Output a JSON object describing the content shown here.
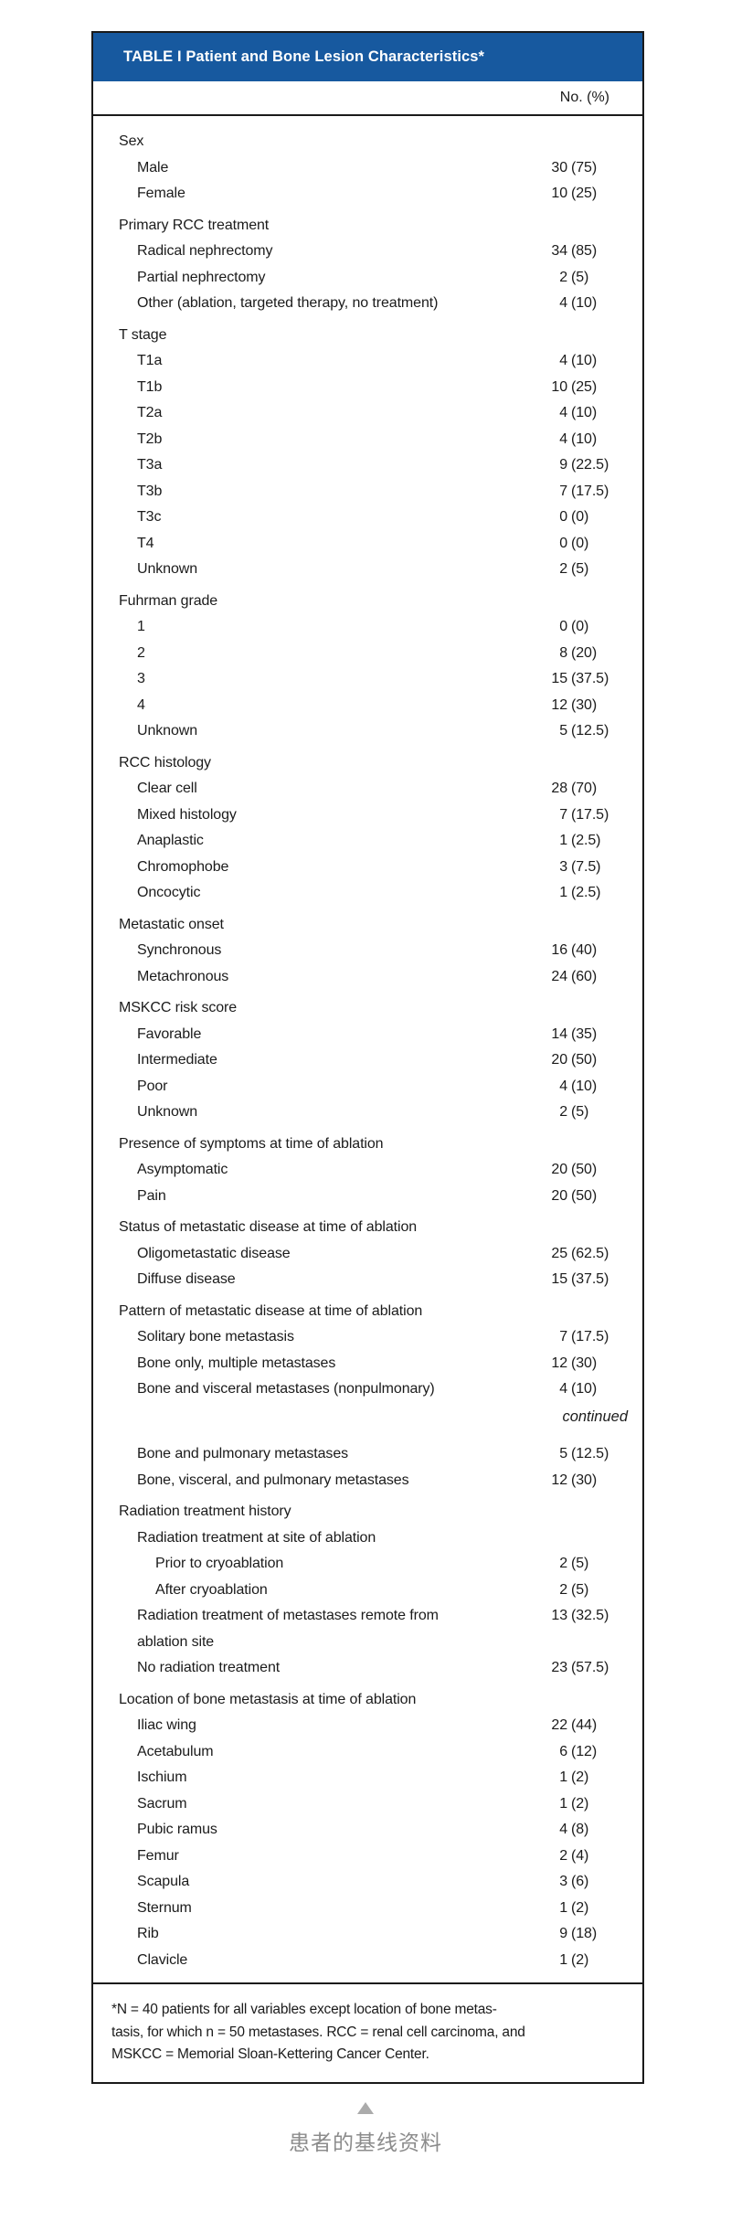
{
  "colors": {
    "header_bg": "#17599F",
    "border": "#1a1a1a",
    "caption_text": "#8c8c8c",
    "triangle": "#ababab"
  },
  "table": {
    "title": "TABLE I Patient and Bone Lesion Characteristics*",
    "col_header": "No. (%)",
    "sections": [
      {
        "label": "Sex",
        "rows": [
          {
            "label": "Male",
            "num": "30",
            "pct": "(75)"
          },
          {
            "label": "Female",
            "num": "10",
            "pct": "(25)"
          }
        ]
      },
      {
        "label": "Primary RCC treatment",
        "rows": [
          {
            "label": "Radical nephrectomy",
            "num": "34",
            "pct": "(85)"
          },
          {
            "label": "Partial nephrectomy",
            "num": "2",
            "pct": "(5)"
          },
          {
            "label": "Other (ablation, targeted therapy, no treatment)",
            "num": "4",
            "pct": "(10)"
          }
        ]
      },
      {
        "label": "T stage",
        "rows": [
          {
            "label": "T1a",
            "num": "4",
            "pct": "(10)"
          },
          {
            "label": "T1b",
            "num": "10",
            "pct": "(25)"
          },
          {
            "label": "T2a",
            "num": "4",
            "pct": "(10)"
          },
          {
            "label": "T2b",
            "num": "4",
            "pct": "(10)"
          },
          {
            "label": "T3a",
            "num": "9",
            "pct": "(22.5)"
          },
          {
            "label": "T3b",
            "num": "7",
            "pct": "(17.5)"
          },
          {
            "label": "T3c",
            "num": "0",
            "pct": "(0)"
          },
          {
            "label": "T4",
            "num": "0",
            "pct": "(0)"
          },
          {
            "label": "Unknown",
            "num": "2",
            "pct": "(5)"
          }
        ]
      },
      {
        "label": "Fuhrman grade",
        "rows": [
          {
            "label": "1",
            "num": "0",
            "pct": "(0)"
          },
          {
            "label": "2",
            "num": "8",
            "pct": "(20)"
          },
          {
            "label": "3",
            "num": "15",
            "pct": "(37.5)"
          },
          {
            "label": "4",
            "num": "12",
            "pct": "(30)"
          },
          {
            "label": "Unknown",
            "num": "5",
            "pct": "(12.5)"
          }
        ]
      },
      {
        "label": "RCC histology",
        "rows": [
          {
            "label": "Clear cell",
            "num": "28",
            "pct": "(70)"
          },
          {
            "label": "Mixed histology",
            "num": "7",
            "pct": "(17.5)"
          },
          {
            "label": "Anaplastic",
            "num": "1",
            "pct": "(2.5)"
          },
          {
            "label": "Chromophobe",
            "num": "3",
            "pct": "(7.5)"
          },
          {
            "label": "Oncocytic",
            "num": "1",
            "pct": "(2.5)"
          }
        ]
      },
      {
        "label": "Metastatic onset",
        "rows": [
          {
            "label": "Synchronous",
            "num": "16",
            "pct": "(40)"
          },
          {
            "label": "Metachronous",
            "num": "24",
            "pct": "(60)"
          }
        ]
      },
      {
        "label": "MSKCC risk score",
        "rows": [
          {
            "label": "Favorable",
            "num": "14",
            "pct": "(35)"
          },
          {
            "label": "Intermediate",
            "num": "20",
            "pct": "(50)"
          },
          {
            "label": "Poor",
            "num": "4",
            "pct": "(10)"
          },
          {
            "label": "Unknown",
            "num": "2",
            "pct": "(5)"
          }
        ]
      },
      {
        "label": "Presence of symptoms at time of ablation",
        "rows": [
          {
            "label": "Asymptomatic",
            "num": "20",
            "pct": "(50)"
          },
          {
            "label": "Pain",
            "num": "20",
            "pct": "(50)"
          }
        ]
      },
      {
        "label": "Status of metastatic disease at time of ablation",
        "rows": [
          {
            "label": "Oligometastatic disease",
            "num": "25",
            "pct": "(62.5)"
          },
          {
            "label": "Diffuse disease",
            "num": "15",
            "pct": "(37.5)"
          }
        ]
      },
      {
        "label": "Pattern of metastatic disease at time of ablation",
        "rows": [
          {
            "label": "Solitary bone metastasis",
            "num": "7",
            "pct": "(17.5)"
          },
          {
            "label": "Bone only, multiple metastases",
            "num": "12",
            "pct": "(30)"
          },
          {
            "label": "Bone and visceral metastases (nonpulmonary)",
            "num": "4",
            "pct": "(10)"
          },
          {
            "type": "continued",
            "label": "continued"
          },
          {
            "label": "Bone and pulmonary metastases",
            "num": "5",
            "pct": "(12.5)"
          },
          {
            "label": "Bone, visceral, and pulmonary metastases",
            "num": "12",
            "pct": "(30)"
          }
        ]
      },
      {
        "label": "Radiation treatment history",
        "rows": [
          {
            "label": "Radiation treatment at site of ablation",
            "indent": 1
          },
          {
            "label": "Prior to cryoablation",
            "indent": 2,
            "num": "2",
            "pct": "(5)"
          },
          {
            "label": "After cryoablation",
            "indent": 2,
            "num": "2",
            "pct": "(5)"
          },
          {
            "label": "Radiation treatment of metastases remote from\nablation site",
            "num": "13",
            "pct": "(32.5)"
          },
          {
            "label": "No radiation treatment",
            "num": "23",
            "pct": "(57.5)"
          }
        ]
      },
      {
        "label": "Location of bone metastasis at time of ablation",
        "rows": [
          {
            "label": "Iliac wing",
            "num": "22",
            "pct": "(44)"
          },
          {
            "label": "Acetabulum",
            "num": "6",
            "pct": "(12)"
          },
          {
            "label": "Ischium",
            "num": "1",
            "pct": "(2)"
          },
          {
            "label": "Sacrum",
            "num": "1",
            "pct": "(2)"
          },
          {
            "label": "Pubic ramus",
            "num": "4",
            "pct": "(8)"
          },
          {
            "label": "Femur",
            "num": "2",
            "pct": "(4)"
          },
          {
            "label": "Scapula",
            "num": "3",
            "pct": "(6)"
          },
          {
            "label": "Sternum",
            "num": "1",
            "pct": "(2)"
          },
          {
            "label": "Rib",
            "num": "9",
            "pct": "(18)"
          },
          {
            "label": "Clavicle",
            "num": "1",
            "pct": "(2)"
          }
        ]
      }
    ],
    "footnote": "*N = 40 patients for all variables except location of bone metas-\ntasis, for which n = 50 metastases. RCC = renal cell carcinoma, and\nMSKCC = Memorial Sloan-Kettering Cancer Center."
  },
  "page": {
    "caption": "患者的基线资料"
  }
}
